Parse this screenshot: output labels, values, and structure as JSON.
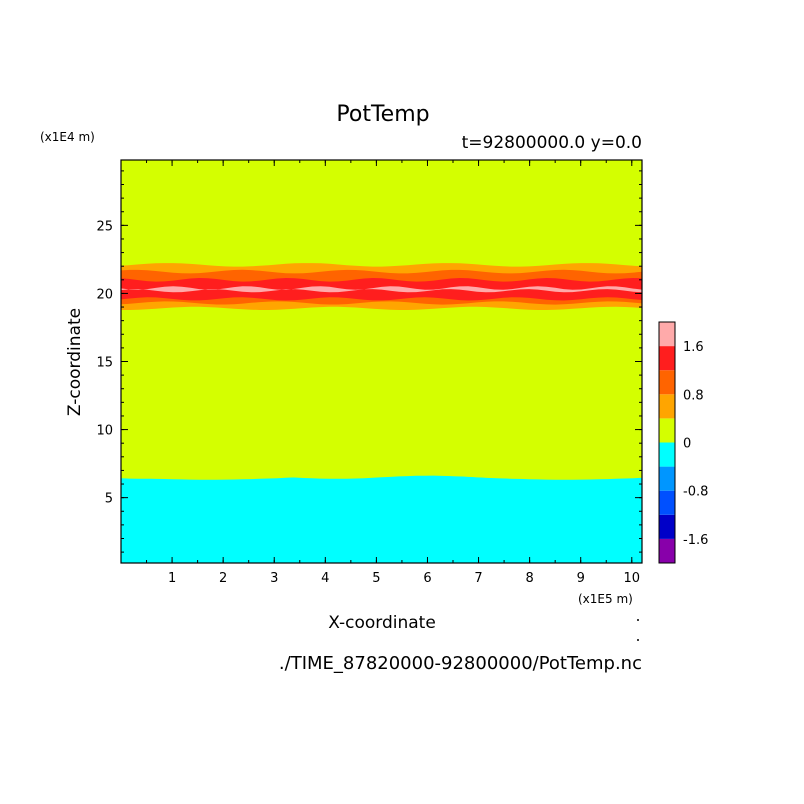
{
  "chart_data": {
    "type": "heatmap",
    "title": "PotTemp",
    "subtitle": "t=92800000.0 y=0.0",
    "xlabel": "X-coordinate",
    "ylabel": "Z-coordinate",
    "x_unit": "(x1E5 m)",
    "y_unit": "(x1E4 m)",
    "xlim": [
      0,
      10.2
    ],
    "ylim": [
      0.2,
      29.8
    ],
    "x_ticks": [
      "1",
      "2",
      "3",
      "4",
      "5",
      "6",
      "7",
      "8",
      "9",
      "10"
    ],
    "y_ticks": [
      "5",
      "10",
      "15",
      "20",
      "25"
    ],
    "x_tick_values": [
      1,
      2,
      3,
      4,
      5,
      6,
      7,
      8,
      9,
      10
    ],
    "y_tick_values": [
      5,
      10,
      15,
      20,
      25
    ],
    "colorbar": {
      "levels": [
        -2.0,
        -1.6,
        -1.2,
        -0.8,
        -0.4,
        0,
        0.4,
        0.8,
        1.2,
        1.6,
        2.0
      ],
      "colors": [
        "#8800aa",
        "#0000c8",
        "#0050ff",
        "#0096ff",
        "#00ffff",
        "#d4ff00",
        "#ffa500",
        "#ff6400",
        "#ff1e1e",
        "#ffaaaa"
      ],
      "tick_labels": [
        "-1.6",
        "-0.8",
        "0",
        "0.8",
        "1.6"
      ],
      "tick_values": [
        -1.6,
        -0.8,
        0,
        0.8,
        1.6
      ]
    },
    "bands": [
      {
        "range": "-0.4 to 0",
        "color": "#00ffff",
        "z_from": 0.2,
        "z_to": 6.5
      },
      {
        "range": "0 to 0.4",
        "color": "#d4ff00",
        "z_from": 6.5,
        "z_to": 18.9
      },
      {
        "range": "0.4 to 0.8",
        "color": "#ffa500",
        "z_from": 18.9,
        "z_to": 22.1
      },
      {
        "range": "0.8 to 1.2",
        "color": "#ff6400",
        "z_from": 19.3,
        "z_to": 21.6
      },
      {
        "range": "1.2 to 1.6",
        "color": "#ff1e1e",
        "z_from": 19.6,
        "z_to": 21.0
      },
      {
        "range": "1.6 to 2.0",
        "color": "#ffaaaa",
        "z_from": 20.2,
        "z_to": 20.4
      }
    ]
  },
  "source_file": "./TIME_87820000-92800000/PotTemp.nc"
}
